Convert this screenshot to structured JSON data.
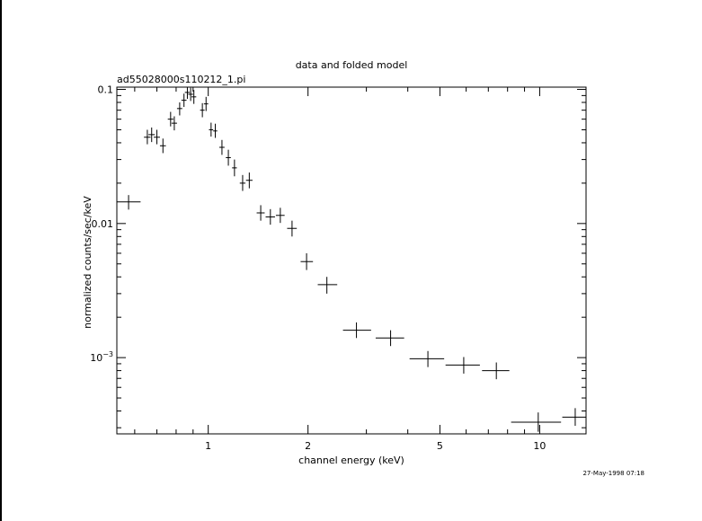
{
  "chart_data": {
    "type": "scatter",
    "title": "data and folded model",
    "subtitle": "ad55028000s110212_1.pi",
    "xlabel": "channel energy (keV)",
    "ylabel": "normalized counts/sec/keV",
    "timestamp": "27-May-1998 07:18",
    "x_scale": "log",
    "y_scale": "log",
    "xlim": [
      0.53,
      13.8
    ],
    "ylim": [
      0.00027,
      0.104
    ],
    "grid": false,
    "x_major_ticks": [
      {
        "value": 1,
        "label": "1"
      },
      {
        "value": 2,
        "label": "2"
      },
      {
        "value": 5,
        "label": "5"
      },
      {
        "value": 10,
        "label": "10"
      }
    ],
    "y_major_ticks": [
      {
        "value": 0.1,
        "label": "0.1"
      },
      {
        "value": 0.01,
        "label": "0.01"
      },
      {
        "value": 0.001,
        "label": "10^-3",
        "base": "10",
        "exp": "−3"
      }
    ],
    "series": [
      {
        "points": [
          {
            "x": 0.575,
            "y": 0.0145,
            "xlo": 0.53,
            "xhi": 0.625,
            "ylo": 0.0127,
            "yhi": 0.0163
          },
          {
            "x": 0.655,
            "y": 0.044,
            "xlo": 0.64,
            "xhi": 0.67,
            "ylo": 0.039,
            "yhi": 0.05
          },
          {
            "x": 0.675,
            "y": 0.046,
            "xlo": 0.66,
            "xhi": 0.69,
            "ylo": 0.0405,
            "yhi": 0.052
          },
          {
            "x": 0.7,
            "y": 0.044,
            "xlo": 0.685,
            "xhi": 0.715,
            "ylo": 0.039,
            "yhi": 0.05
          },
          {
            "x": 0.73,
            "y": 0.038,
            "xlo": 0.715,
            "xhi": 0.745,
            "ylo": 0.0335,
            "yhi": 0.043
          },
          {
            "x": 0.77,
            "y": 0.06,
            "xlo": 0.755,
            "xhi": 0.785,
            "ylo": 0.053,
            "yhi": 0.068
          },
          {
            "x": 0.79,
            "y": 0.056,
            "xlo": 0.775,
            "xhi": 0.805,
            "ylo": 0.0495,
            "yhi": 0.063
          },
          {
            "x": 0.82,
            "y": 0.072,
            "xlo": 0.805,
            "xhi": 0.835,
            "ylo": 0.064,
            "yhi": 0.08
          },
          {
            "x": 0.845,
            "y": 0.083,
            "xlo": 0.83,
            "xhi": 0.86,
            "ylo": 0.074,
            "yhi": 0.093
          },
          {
            "x": 0.865,
            "y": 0.095,
            "xlo": 0.85,
            "xhi": 0.88,
            "ylo": 0.085,
            "yhi": 0.104
          },
          {
            "x": 0.885,
            "y": 0.092,
            "xlo": 0.87,
            "xhi": 0.9,
            "ylo": 0.082,
            "yhi": 0.103
          },
          {
            "x": 0.905,
            "y": 0.088,
            "xlo": 0.89,
            "xhi": 0.92,
            "ylo": 0.078,
            "yhi": 0.099
          },
          {
            "x": 0.96,
            "y": 0.07,
            "xlo": 0.945,
            "xhi": 0.975,
            "ylo": 0.062,
            "yhi": 0.079
          },
          {
            "x": 0.985,
            "y": 0.078,
            "xlo": 0.97,
            "xhi": 1.0,
            "ylo": 0.069,
            "yhi": 0.088
          },
          {
            "x": 1.02,
            "y": 0.05,
            "xlo": 1.005,
            "xhi": 1.035,
            "ylo": 0.0445,
            "yhi": 0.0565
          },
          {
            "x": 1.05,
            "y": 0.049,
            "xlo": 1.035,
            "xhi": 1.065,
            "ylo": 0.0435,
            "yhi": 0.0555
          },
          {
            "x": 1.1,
            "y": 0.037,
            "xlo": 1.08,
            "xhi": 1.12,
            "ylo": 0.0325,
            "yhi": 0.042
          },
          {
            "x": 1.15,
            "y": 0.031,
            "xlo": 1.13,
            "xhi": 1.17,
            "ylo": 0.027,
            "yhi": 0.0355
          },
          {
            "x": 1.2,
            "y": 0.026,
            "xlo": 1.18,
            "xhi": 1.22,
            "ylo": 0.0225,
            "yhi": 0.03
          },
          {
            "x": 1.27,
            "y": 0.02,
            "xlo": 1.245,
            "xhi": 1.295,
            "ylo": 0.0175,
            "yhi": 0.023
          },
          {
            "x": 1.33,
            "y": 0.021,
            "xlo": 1.3,
            "xhi": 1.36,
            "ylo": 0.0183,
            "yhi": 0.024
          },
          {
            "x": 1.44,
            "y": 0.012,
            "xlo": 1.4,
            "xhi": 1.48,
            "ylo": 0.0105,
            "yhi": 0.0137
          },
          {
            "x": 1.54,
            "y": 0.0112,
            "xlo": 1.49,
            "xhi": 1.59,
            "ylo": 0.0098,
            "yhi": 0.0128
          },
          {
            "x": 1.65,
            "y": 0.0115,
            "xlo": 1.6,
            "xhi": 1.7,
            "ylo": 0.0101,
            "yhi": 0.0131
          },
          {
            "x": 1.79,
            "y": 0.0092,
            "xlo": 1.73,
            "xhi": 1.85,
            "ylo": 0.008,
            "yhi": 0.0105
          },
          {
            "x": 1.98,
            "y": 0.0052,
            "xlo": 1.9,
            "xhi": 2.07,
            "ylo": 0.0045,
            "yhi": 0.006
          },
          {
            "x": 2.28,
            "y": 0.0035,
            "xlo": 2.14,
            "xhi": 2.45,
            "ylo": 0.003,
            "yhi": 0.004
          },
          {
            "x": 2.8,
            "y": 0.0016,
            "xlo": 2.55,
            "xhi": 3.1,
            "ylo": 0.0014,
            "yhi": 0.00183
          },
          {
            "x": 3.55,
            "y": 0.0014,
            "xlo": 3.2,
            "xhi": 3.9,
            "ylo": 0.00122,
            "yhi": 0.0016
          },
          {
            "x": 4.6,
            "y": 0.00098,
            "xlo": 4.05,
            "xhi": 5.15,
            "ylo": 0.00085,
            "yhi": 0.00112
          },
          {
            "x": 5.9,
            "y": 0.00088,
            "xlo": 5.2,
            "xhi": 6.6,
            "ylo": 0.00076,
            "yhi": 0.00101
          },
          {
            "x": 7.4,
            "y": 0.0008,
            "xlo": 6.7,
            "xhi": 8.1,
            "ylo": 0.00069,
            "yhi": 0.00092
          },
          {
            "x": 9.9,
            "y": 0.00033,
            "xlo": 8.2,
            "xhi": 11.6,
            "ylo": 0.00028,
            "yhi": 0.00039
          },
          {
            "x": 12.8,
            "y": 0.00036,
            "xlo": 11.7,
            "xhi": 13.8,
            "ylo": 0.00031,
            "yhi": 0.00042
          }
        ]
      }
    ]
  }
}
